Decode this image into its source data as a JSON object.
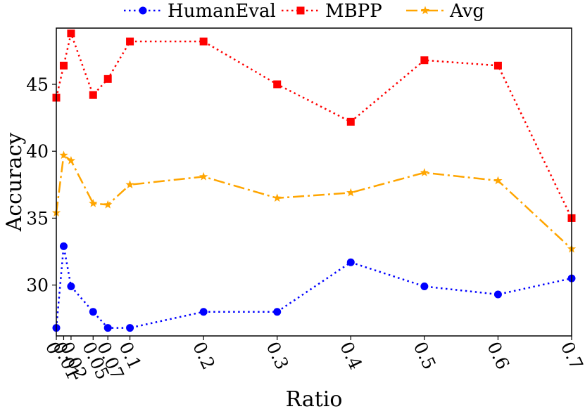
{
  "chart_data": {
    "type": "line",
    "title": "",
    "xlabel": "Ratio",
    "ylabel": "Accuracy",
    "x": [
      0,
      0.01,
      0.02,
      0.05,
      0.07,
      0.1,
      0.2,
      0.3,
      0.4,
      0.5,
      0.6,
      0.7
    ],
    "x_tick_labels": [
      "0",
      "0.01",
      "0.02",
      "0.05",
      "0.07",
      "0.1",
      "0.2",
      "0.3",
      "0.4",
      "0.5",
      "0.6",
      "0.7"
    ],
    "ylim": [
      26.2,
      49.2
    ],
    "y_ticks": [
      30,
      35,
      40,
      45
    ],
    "y_tick_labels": [
      "30",
      "35",
      "40",
      "45"
    ],
    "grid": false,
    "legend_position": "top",
    "series": [
      {
        "name": "HumanEval",
        "color": "#0000ff",
        "marker": "circle",
        "line_style": "dotted",
        "values": [
          26.8,
          32.9,
          29.9,
          28.0,
          26.8,
          26.8,
          28.0,
          28.0,
          31.7,
          29.9,
          29.3,
          30.5
        ]
      },
      {
        "name": "MBPP",
        "color": "#ff0000",
        "marker": "square",
        "line_style": "dotted",
        "values": [
          44.0,
          46.4,
          48.8,
          44.2,
          45.4,
          48.2,
          48.2,
          45.0,
          42.2,
          46.8,
          46.4,
          35.0
        ]
      },
      {
        "name": "Avg",
        "color": "#ffa500",
        "marker": "star",
        "line_style": "dashdot",
        "values": [
          35.4,
          39.7,
          39.3,
          36.1,
          36.0,
          37.5,
          38.1,
          36.5,
          36.9,
          38.4,
          37.8,
          32.7
        ]
      }
    ]
  }
}
